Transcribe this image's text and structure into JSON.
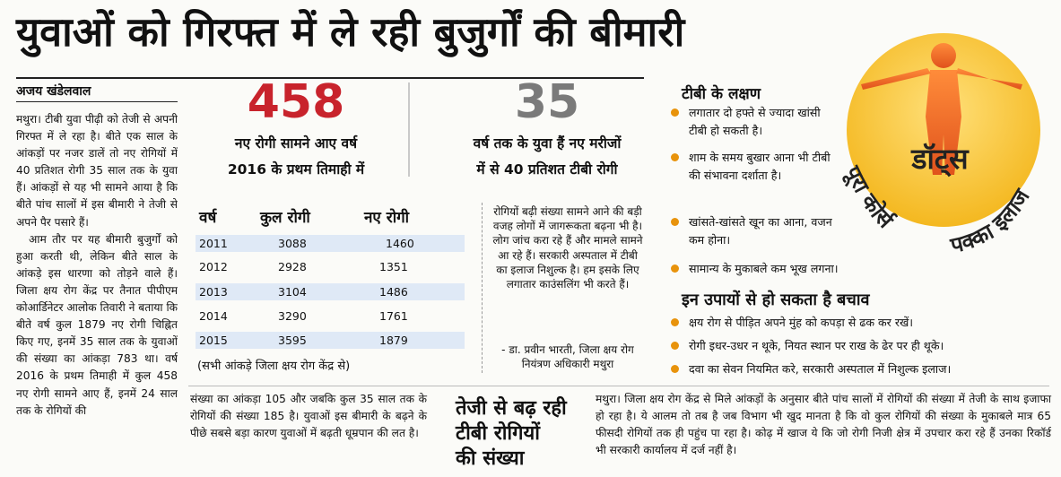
{
  "headline": "युवाओं को गिरफ्त में ले रही बुजुर्गों की बीमारी",
  "byline": "अजय खंडेलवाल",
  "main_text": {
    "p1": "मथुरा। टीबी युवा पीढ़ी को तेजी से अपनी गिरफ्त में ले रहा है। बीते एक साल के आंकड़ों पर नजर डालें तो नए रोगियों में 40 प्रतिशत रोगी 35 साल तक के युवा हैं। आंकड़ों से यह भी सामने आया है कि बीते पांच सालों में इस बीमारी ने तेजी से अपने पैर पसारे हैं।",
    "p2": "आम तौर पर यह बीमारी बुजुर्गों को हुआ करती थी, लेकिन बीते साल के आंकड़े इस धारणा को तोड़ने वाले हैं। जिला क्षय रोग केंद्र पर तैनात पीपीएम कोआर्डिनेटर आलोक तिवारी ने बताया कि बीते वर्ष कुल 1879 नए रोगी चिह्नित किए गए, इनमें 35 साल तक के युवाओं की संख्या का आंकड़ा 783 था। वर्ष 2016 के प्रथम तिमाही में कुल 458 नए रोगी सामने आए हैं, इनमें 24 साल तक के रोगियों की",
    "continued": "संख्या का आंकड़ा 105 और जबकि कुल 35 साल तक के रोगियों की संख्या 185 है। युवाओं इस बीमारी के बढ़ने के पीछे सबसे बड़ा कारण युवाओं में बढ़ती धूम्रपान की लत है।"
  },
  "stat1": {
    "number": "458",
    "caption1": "नए रोगी सामने आए वर्ष",
    "caption2": "2016 के प्रथम तिमाही में"
  },
  "stat2": {
    "number": "35",
    "caption1": "वर्ष तक के युवा हैं नए मरीजों",
    "caption2": "में से 40 प्रतिशत टीबी रोगी"
  },
  "table": {
    "headers": {
      "year": "वर्ष",
      "total": "कुल रोगी",
      "new": "नए रोगी"
    },
    "rows": [
      {
        "year": "2011",
        "total": "3088",
        "new": "1460"
      },
      {
        "year": "2012",
        "total": "2928",
        "new": "1351"
      },
      {
        "year": "2013",
        "total": "3104",
        "new": "1486"
      },
      {
        "year": "2014",
        "total": "3290",
        "new": "1761"
      },
      {
        "year": "2015",
        "total": "3595",
        "new": "1879"
      }
    ],
    "source": "(सभी आंकड़े जिला क्षय रोग केंद्र से)"
  },
  "quote": {
    "text": "रोगियों बढ़ी संख्या सामने आने की बड़ी वजह लोगों में जागरूकता बढ़ना भी है। लोग जांच करा रहे हैं और मामले सामने आ रहे हैं। सरकारी अस्पताल में टीबी का इलाज निशुल्क है। हम इसके लिए लगातार काउंसलिंग भी करते हैं।",
    "attribution1": "- डा. प्रवीन भारती, जिला क्षय रोग",
    "attribution2": "नियंत्रण अधिकारी मथुरा"
  },
  "symptoms": {
    "heading": "टीबी के लक्षण",
    "items": [
      "लगातार दो हफ्ते से ज्यादा खांसी टीबी हो सकती है।",
      "शाम के समय बुखार आना भी टीबी की संभावना दर्शाता है।",
      "खांसते-खांसते खून का आना, वजन कम होना।",
      "सामान्य के मुकाबले कम भूख लगना।"
    ]
  },
  "prevention": {
    "heading": "इन उपायों से हो सकता है बचाव",
    "items": [
      "क्षय रोग से पीड़ित अपने मुंह को कपड़ा से ढक कर रखें।",
      "रोगी इधर-उधर न थूके, नियत स्थान पर राख के ढेर पर ही थूके।",
      "दवा का सेवन नियमित करे, सरकारी अस्पताल में निशुल्क इलाज।"
    ]
  },
  "logo": {
    "brand": "डॉट्स",
    "left_text": "पूरा कोर्स",
    "right_text": "पक्का इलाज",
    "color": "#f4b820"
  },
  "bottom": {
    "heading1": "तेजी से बढ़ रही",
    "heading2": "टीबी रोगियों",
    "heading3": "की संख्या",
    "text": "मथुरा। जिला क्षय रोग केंद्र से मिले आंकड़ों के अनुसार बीते पांच सालों में रोगियों की संख्या में तेजी के साथ इजाफा हो रहा है। ये आलम तो तब है जब विभाग भी खुद मानता है कि वो कुल रोगियों की संख्या के मुकाबले मात्र 65 फीसदी रोगियों तक ही पहुंच पा रहा है। कोढ़ में खाज ये कि जो रोगी निजी क्षेत्र में उपचार करा रहे हैं उनका रिकॉर्ड भी सरकारी कार्यालय में दर्ज नहीं है।"
  },
  "colors": {
    "stat1": "#c8232c",
    "stat2": "#7a7a7a",
    "bullet": "#e8930c",
    "table_shade": "#dfe9f6"
  }
}
